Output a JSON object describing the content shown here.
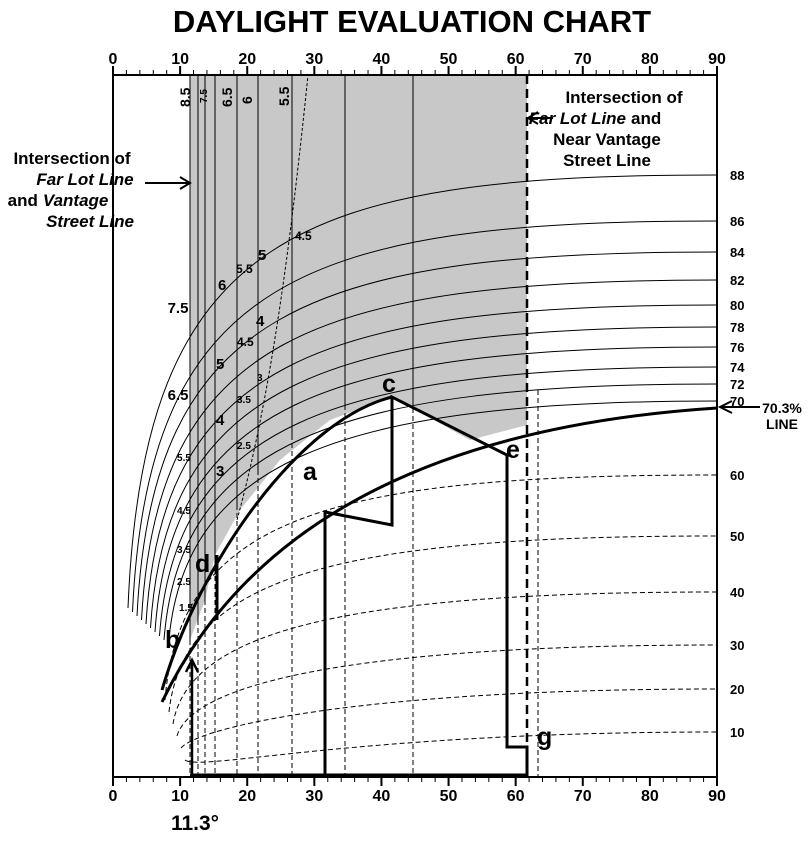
{
  "title": "DAYLIGHT EVALUATION CHART",
  "x_axis": {
    "xlim": [
      0,
      90
    ],
    "ticks": [
      0,
      10,
      20,
      30,
      40,
      50,
      60,
      70,
      80,
      90
    ]
  },
  "right_labels": [
    "88",
    "86",
    "84",
    "82",
    "80",
    "78",
    "76",
    "74",
    "72",
    "70",
    "60",
    "50",
    "40",
    "30",
    "20",
    "10"
  ],
  "line_note": [
    "70.3%",
    "LINE"
  ],
  "left_labels": [
    "7.5",
    "6.5",
    "5.5",
    "4.5",
    "3.5",
    "2.5",
    "1.5"
  ],
  "top_labels": [
    "8.5",
    "7.5",
    "6.5",
    "6",
    "5.5"
  ],
  "inner_labels": [
    "4.5",
    "5",
    "5.5",
    "6",
    "4",
    "4.5",
    "5",
    "3.5",
    "3",
    "4",
    "2.5",
    "3"
  ],
  "points": [
    "a",
    "b",
    "c",
    "d",
    "e",
    "g"
  ],
  "left_note": [
    "Intersection of",
    "Far Lot Line",
    "and",
    "Vantage",
    "Street Line"
  ],
  "right_note": [
    "Intersection of",
    "Far Lot Line",
    "and",
    "Near Vantage",
    "Street Line"
  ],
  "angle": "11.3°"
}
